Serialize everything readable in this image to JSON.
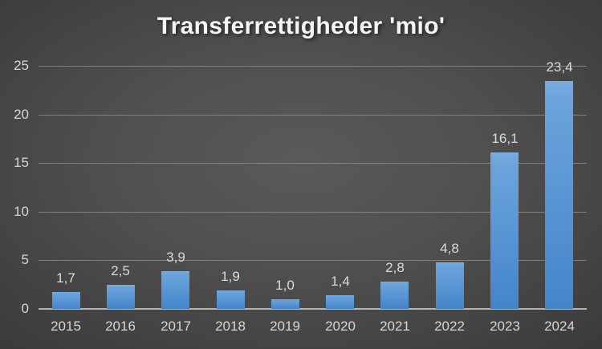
{
  "title": "Transferrettigheder 'mio'",
  "chart_data": {
    "type": "bar",
    "title": "Transferrettigheder 'mio'",
    "categories": [
      "2015",
      "2016",
      "2017",
      "2018",
      "2019",
      "2020",
      "2021",
      "2022",
      "2023",
      "2024"
    ],
    "values": [
      1.7,
      2.5,
      3.9,
      1.9,
      1.0,
      1.4,
      2.8,
      4.8,
      16.1,
      23.4
    ],
    "value_labels": [
      "1,7",
      "2,5",
      "3,9",
      "1,9",
      "1,0",
      "1,4",
      "2,8",
      "4,8",
      "16,1",
      "23,4"
    ],
    "xlabel": "",
    "ylabel": "",
    "ylim": [
      0,
      25
    ],
    "yticks": [
      0,
      5,
      10,
      15,
      20,
      25
    ],
    "ytick_labels": [
      "0",
      "5",
      "10",
      "15",
      "20",
      "25"
    ],
    "grid": true,
    "legend": false,
    "colors": {
      "bar_top": "#6fa6de",
      "bar_bottom": "#4484c9",
      "gridline": "#8f8f8f",
      "axis_line": "#b4b4b4",
      "label_text": "#d6d6d6",
      "title_text": "#f4f4f4",
      "background_center": "#565656",
      "background_corner": "#272727"
    }
  }
}
